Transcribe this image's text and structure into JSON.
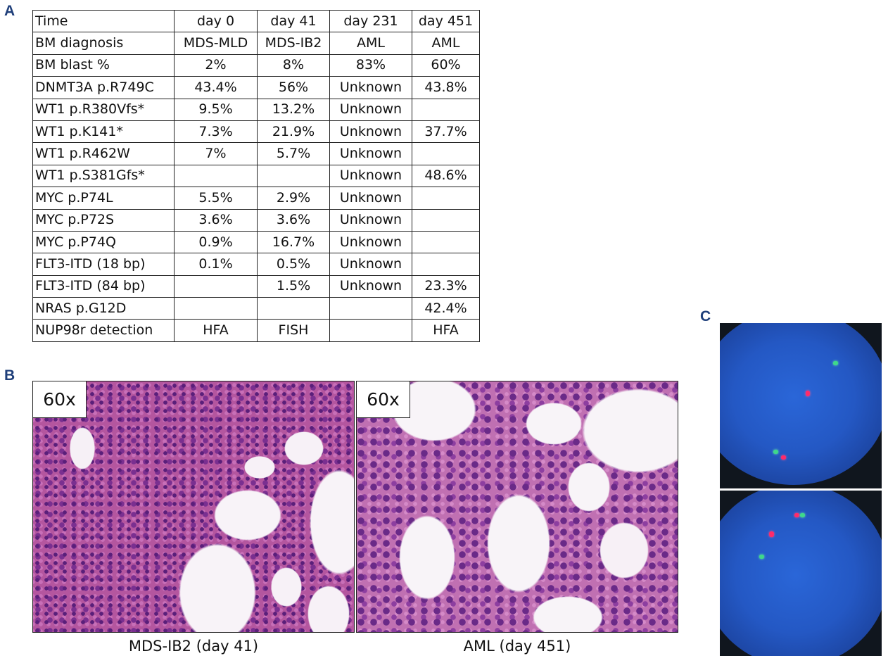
{
  "panels": {
    "a": "A",
    "b": "B",
    "c": "C"
  },
  "table": {
    "header": [
      "Time",
      "day 0",
      "day 41",
      "day 231",
      "day 451"
    ],
    "rows": [
      [
        "BM diagnosis",
        "MDS-MLD",
        "MDS-IB2",
        "AML",
        "AML"
      ],
      [
        "BM blast %",
        "2%",
        "8%",
        "83%",
        "60%"
      ],
      [
        "DNMT3A p.R749C",
        "43.4%",
        "56%",
        "Unknown",
        "43.8%"
      ],
      [
        "WT1 p.R380Vfs*",
        "9.5%",
        "13.2%",
        "Unknown",
        ""
      ],
      [
        "WT1 p.K141*",
        "7.3%",
        "21.9%",
        "Unknown",
        "37.7%"
      ],
      [
        "WT1 p.R462W",
        "7%",
        "5.7%",
        "Unknown",
        ""
      ],
      [
        "WT1 p.S381Gfs*",
        "",
        "",
        "Unknown",
        "48.6%"
      ],
      [
        "MYC p.P74L",
        "5.5%",
        "2.9%",
        "Unknown",
        ""
      ],
      [
        "MYC p.P72S",
        "3.6%",
        "3.6%",
        "Unknown",
        ""
      ],
      [
        "MYC p.P74Q",
        "0.9%",
        "16.7%",
        "Unknown",
        ""
      ],
      [
        "FLT3-ITD (18 bp)",
        "0.1%",
        "0.5%",
        "Unknown",
        ""
      ],
      [
        "FLT3-ITD (84 bp)",
        "",
        "1.5%",
        "Unknown",
        "23.3%"
      ],
      [
        "NRAS  p.G12D",
        "",
        "",
        "",
        "42.4%"
      ],
      [
        "NUP98r detection",
        "HFA",
        "FISH",
        "",
        "HFA"
      ]
    ]
  },
  "histology": [
    {
      "magnification": "60x",
      "caption": "MDS-IB2 (day 41)"
    },
    {
      "magnification": "60x",
      "caption": "AML (day 451)"
    }
  ]
}
